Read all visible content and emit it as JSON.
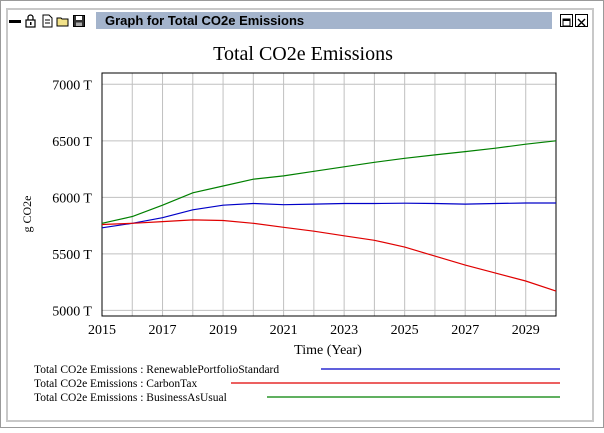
{
  "window": {
    "title": "Graph for Total CO2e Emissions",
    "toolbar_icons": [
      "minimize-bar-icon",
      "lock-icon",
      "document-icon",
      "folder-icon",
      "save-icon"
    ],
    "controls": [
      "restore-icon",
      "close-icon"
    ]
  },
  "chart_data": {
    "type": "line",
    "title": "Total CO2e Emissions",
    "xlabel": "Time (Year)",
    "ylabel": "g CO2e",
    "xlim": [
      2015,
      2030
    ],
    "ylim": [
      4950,
      7100
    ],
    "x_ticks": [
      2015,
      2017,
      2019,
      2021,
      2023,
      2025,
      2027,
      2029
    ],
    "y_ticks": [
      5000,
      5500,
      6000,
      6500,
      7000
    ],
    "y_tick_labels": [
      "5000 T",
      "5500 T",
      "6000 T",
      "6500 T",
      "7000 T"
    ],
    "grid": true,
    "legend_placement": "bottom",
    "x": [
      2015,
      2016,
      2017,
      2018,
      2019,
      2020,
      2021,
      2022,
      2023,
      2024,
      2025,
      2026,
      2027,
      2028,
      2029,
      2030
    ],
    "series": [
      {
        "name": "Total CO2e Emissions : RenewablePortfolioStandard",
        "color": "#0000c8",
        "values": [
          5730,
          5770,
          5820,
          5890,
          5930,
          5945,
          5935,
          5940,
          5945,
          5945,
          5948,
          5945,
          5940,
          5945,
          5950,
          5950
        ]
      },
      {
        "name": "Total CO2e Emissions : CarbonTax",
        "color": "#e00000",
        "values": [
          5760,
          5770,
          5785,
          5800,
          5795,
          5770,
          5735,
          5700,
          5660,
          5620,
          5560,
          5480,
          5400,
          5330,
          5260,
          5170
        ]
      },
      {
        "name": "Total CO2e Emissions : BusinessAsUsual",
        "color": "#008000",
        "values": [
          5770,
          5830,
          5930,
          6040,
          6100,
          6160,
          6190,
          6230,
          6270,
          6310,
          6345,
          6375,
          6405,
          6435,
          6470,
          6500
        ]
      }
    ]
  }
}
